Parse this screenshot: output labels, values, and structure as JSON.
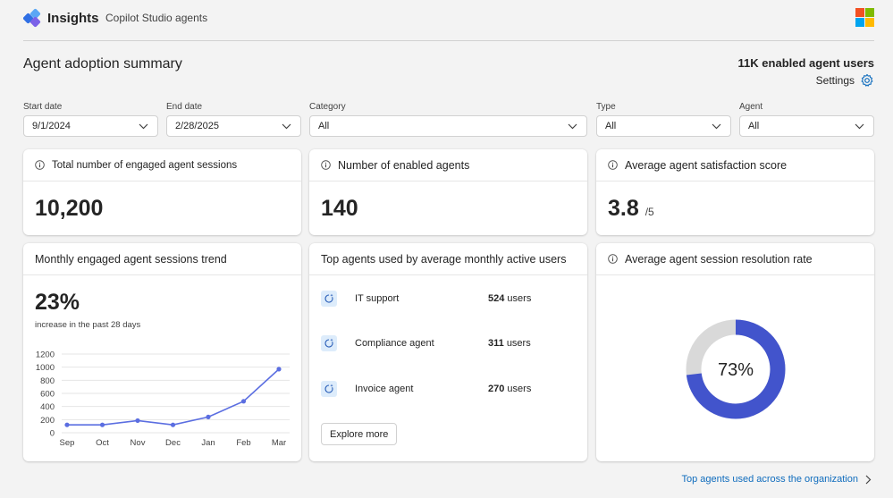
{
  "header": {
    "app_name": "Insights",
    "app_subtitle": "Copilot Studio agents"
  },
  "summary": {
    "title": "Agent adoption summary",
    "enabled_users": "11K enabled agent users",
    "settings_label": "Settings"
  },
  "filters": [
    {
      "label": "Start date",
      "value": "9/1/2024"
    },
    {
      "label": "End date",
      "value": "2/28/2025"
    },
    {
      "label": "Category",
      "value": "All"
    },
    {
      "label": "Type",
      "value": "All"
    },
    {
      "label": "Agent",
      "value": "All"
    }
  ],
  "kpis": {
    "sessions": {
      "title": "Total number of engaged agent sessions",
      "value": "10,200"
    },
    "agents": {
      "title": "Number of enabled agents",
      "value": "140"
    },
    "satisfaction": {
      "title": "Average agent satisfaction score",
      "value": "3.8",
      "suffix": "/5"
    }
  },
  "trend": {
    "title": "Monthly engaged agent sessions trend",
    "percent": "23%",
    "note": "increase in the past 28 days"
  },
  "top_agents": {
    "title": "Top agents used by average monthly active users",
    "items": [
      {
        "name": "IT support",
        "count": "524",
        "unit": "users"
      },
      {
        "name": "Compliance agent",
        "count": "311",
        "unit": "users"
      },
      {
        "name": "Invoice agent",
        "count": "270",
        "unit": "users"
      }
    ],
    "explore_label": "Explore more"
  },
  "resolution": {
    "title": "Average agent session resolution rate",
    "value": "73%",
    "fraction": 0.73
  },
  "footer": {
    "link_label": "Top agents used across the organization"
  },
  "colors": {
    "accent": "#4a5fd6",
    "line": "#5b6ee1",
    "donut_fill": "#4254cc",
    "donut_track": "#d9d9d9",
    "link": "#0f6cbd"
  },
  "chart_data": {
    "type": "line",
    "title": "",
    "xlabel": "",
    "ylabel": "",
    "categories": [
      "Sep",
      "Oct",
      "Nov",
      "Dec",
      "Jan",
      "Feb",
      "Mar"
    ],
    "series": [
      {
        "values": [
          120,
          120,
          185,
          120,
          240,
          480,
          970
        ]
      }
    ],
    "yticks": [
      0,
      200,
      400,
      600,
      800,
      1000,
      1200
    ],
    "ylim": [
      0,
      1200
    ],
    "grid": true,
    "legend": "none"
  }
}
